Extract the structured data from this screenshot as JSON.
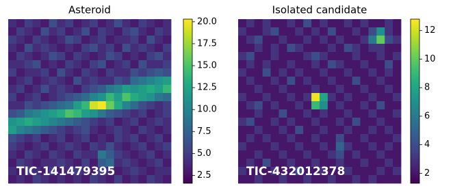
{
  "chart_data": [
    {
      "type": "heatmap",
      "title": "Asteroid",
      "annotation": "TIC-141479395",
      "colormap": "viridis",
      "clim": [
        1.6,
        20.3
      ],
      "cticks": [
        2.5,
        {
          "value": 5,
          "label": "5.0"
        },
        7.5,
        {
          "value": 10,
          "label": "10.0"
        },
        12.5,
        {
          "value": 15,
          "label": "15.0"
        },
        17.5,
        {
          "value": 20,
          "label": "20.0"
        }
      ],
      "values": [
        [
          4,
          3,
          5,
          4,
          3,
          6,
          4,
          5,
          3,
          4,
          5,
          3,
          4,
          6,
          4,
          3,
          5,
          4,
          3,
          4
        ],
        [
          3,
          5,
          4,
          3,
          6,
          4,
          5,
          3,
          4,
          6,
          3,
          5,
          4,
          3,
          5,
          6,
          4,
          3,
          5,
          4
        ],
        [
          5,
          4,
          3,
          5,
          4,
          3,
          4,
          6,
          5,
          3,
          4,
          5,
          3,
          4,
          4,
          5,
          3,
          6,
          4,
          3
        ],
        [
          4,
          3,
          6,
          4,
          5,
          4,
          3,
          4,
          3,
          5,
          6,
          4,
          5,
          3,
          6,
          4,
          5,
          4,
          3,
          5
        ],
        [
          3,
          5,
          4,
          3,
          4,
          6,
          5,
          3,
          5,
          4,
          3,
          4,
          6,
          5,
          3,
          4,
          3,
          5,
          6,
          4
        ],
        [
          4,
          4,
          5,
          6,
          3,
          4,
          3,
          5,
          4,
          3,
          5,
          6,
          3,
          4,
          5,
          3,
          6,
          4,
          4,
          5
        ],
        [
          5,
          3,
          4,
          4,
          5,
          3,
          6,
          4,
          3,
          5,
          4,
          3,
          5,
          4,
          4,
          6,
          5,
          6,
          7,
          6
        ],
        [
          3,
          4,
          5,
          3,
          4,
          5,
          4,
          3,
          6,
          4,
          5,
          4,
          4,
          6,
          5,
          8,
          9,
          10,
          11,
          12
        ],
        [
          4,
          5,
          3,
          4,
          6,
          4,
          5,
          4,
          3,
          5,
          6,
          7,
          9,
          10,
          12,
          11,
          12,
          13,
          12,
          14
        ],
        [
          5,
          3,
          4,
          5,
          3,
          4,
          5,
          6,
          7,
          8,
          10,
          11,
          14,
          12,
          15,
          13,
          12,
          11,
          9,
          8
        ],
        [
          4,
          4,
          6,
          5,
          6,
          7,
          8,
          9,
          12,
          14,
          19,
          20,
          16,
          13,
          10,
          8,
          6,
          5,
          4,
          5
        ],
        [
          6,
          7,
          9,
          10,
          11,
          12,
          13,
          15,
          14,
          12,
          11,
          9,
          7,
          6,
          5,
          4,
          5,
          3,
          4,
          5
        ],
        [
          11,
          12,
          13,
          12,
          11,
          10,
          9,
          8,
          7,
          6,
          5,
          4,
          5,
          3,
          4,
          5,
          3,
          4,
          5,
          4
        ],
        [
          12,
          10,
          9,
          8,
          7,
          6,
          5,
          4,
          5,
          6,
          4,
          3,
          4,
          5,
          4,
          3,
          5,
          4,
          3,
          4
        ],
        [
          6,
          5,
          4,
          5,
          3,
          4,
          5,
          3,
          4,
          5,
          3,
          4,
          3,
          5,
          4,
          5,
          3,
          4,
          5,
          3
        ],
        [
          5,
          4,
          3,
          4,
          5,
          3,
          4,
          5,
          4,
          3,
          5,
          4,
          6,
          4,
          3,
          4,
          5,
          3,
          4,
          5
        ],
        [
          4,
          3,
          5,
          4,
          3,
          5,
          4,
          3,
          5,
          4,
          4,
          9,
          7,
          5,
          4,
          3,
          4,
          5,
          3,
          4
        ],
        [
          3,
          5,
          4,
          3,
          4,
          4,
          5,
          4,
          3,
          5,
          3,
          7,
          8,
          4,
          5,
          4,
          3,
          4,
          5,
          3
        ],
        [
          4,
          3,
          5,
          4,
          3,
          5,
          3,
          4,
          5,
          4,
          3,
          5,
          4,
          3,
          4,
          5,
          4,
          3,
          4,
          4
        ],
        [
          3,
          4,
          3,
          5,
          4,
          3,
          4,
          3,
          4,
          3,
          5,
          4,
          3,
          5,
          3,
          4,
          3,
          5,
          4,
          3
        ]
      ]
    },
    {
      "type": "heatmap",
      "title": "Isolated candidate",
      "annotation": "TIC-432012378",
      "colormap": "viridis",
      "clim": [
        1.3,
        12.8
      ],
      "cticks": [
        2,
        4,
        6,
        8,
        10,
        12
      ],
      "values": [
        [
          2,
          3,
          2,
          3,
          2,
          2,
          3,
          2,
          4,
          2,
          3,
          2,
          2,
          3,
          2,
          3,
          2,
          2,
          3,
          2
        ],
        [
          3,
          2,
          2,
          3,
          4,
          2,
          2,
          3,
          2,
          3,
          2,
          4,
          2,
          2,
          3,
          2,
          4,
          7,
          3,
          2
        ],
        [
          2,
          3,
          4,
          2,
          2,
          3,
          2,
          2,
          3,
          2,
          3,
          2,
          3,
          2,
          2,
          3,
          6,
          10,
          4,
          3
        ],
        [
          2,
          2,
          3,
          2,
          3,
          2,
          4,
          3,
          2,
          2,
          2,
          3,
          2,
          4,
          3,
          2,
          3,
          3,
          2,
          2
        ],
        [
          3,
          4,
          2,
          2,
          3,
          2,
          2,
          2,
          3,
          4,
          3,
          2,
          2,
          2,
          3,
          2,
          2,
          3,
          2,
          3
        ],
        [
          2,
          3,
          2,
          3,
          2,
          2,
          3,
          2,
          2,
          3,
          2,
          4,
          3,
          2,
          2,
          3,
          2,
          2,
          4,
          2
        ],
        [
          3,
          2,
          2,
          4,
          2,
          3,
          2,
          3,
          2,
          2,
          3,
          2,
          2,
          3,
          2,
          2,
          3,
          2,
          3,
          2
        ],
        [
          2,
          3,
          2,
          2,
          3,
          2,
          4,
          2,
          3,
          2,
          2,
          3,
          2,
          2,
          4,
          2,
          2,
          3,
          2,
          2
        ],
        [
          2,
          2,
          3,
          2,
          2,
          3,
          2,
          2,
          2,
          3,
          2,
          2,
          3,
          2,
          2,
          3,
          2,
          2,
          3,
          2
        ],
        [
          3,
          2,
          2,
          3,
          2,
          2,
          3,
          2,
          3,
          12.5,
          8,
          3,
          2,
          3,
          2,
          2,
          3,
          2,
          2,
          3
        ],
        [
          2,
          3,
          4,
          2,
          3,
          2,
          2,
          3,
          2,
          9,
          7,
          2,
          3,
          2,
          2,
          3,
          2,
          4,
          2,
          2
        ],
        [
          2,
          2,
          3,
          2,
          2,
          4,
          2,
          2,
          3,
          2,
          3,
          2,
          2,
          3,
          2,
          2,
          3,
          2,
          2,
          3
        ],
        [
          3,
          4,
          2,
          2,
          3,
          2,
          3,
          2,
          2,
          3,
          2,
          2,
          3,
          2,
          4,
          2,
          2,
          3,
          2,
          2
        ],
        [
          2,
          2,
          3,
          2,
          2,
          3,
          2,
          4,
          2,
          2,
          3,
          2,
          2,
          3,
          2,
          2,
          3,
          2,
          3,
          2
        ],
        [
          2,
          3,
          2,
          3,
          2,
          2,
          3,
          2,
          2,
          3,
          2,
          2,
          4,
          2,
          2,
          3,
          2,
          2,
          2,
          3
        ],
        [
          3,
          2,
          2,
          2,
          3,
          2,
          2,
          3,
          2,
          2,
          3,
          2,
          5,
          3,
          2,
          2,
          3,
          2,
          3,
          2
        ],
        [
          2,
          2,
          3,
          2,
          2,
          3,
          2,
          2,
          3,
          2,
          2,
          3,
          4,
          2,
          3,
          2,
          2,
          3,
          2,
          2
        ],
        [
          2,
          3,
          2,
          4,
          2,
          2,
          3,
          2,
          2,
          3,
          2,
          2,
          3,
          2,
          2,
          3,
          2,
          2,
          3,
          2
        ],
        [
          3,
          2,
          2,
          2,
          3,
          2,
          2,
          4,
          2,
          2,
          3,
          2,
          2,
          3,
          2,
          2,
          2,
          3,
          2,
          3
        ],
        [
          2,
          2,
          3,
          2,
          2,
          3,
          2,
          2,
          3,
          2,
          2,
          3,
          2,
          2,
          3,
          2,
          3,
          2,
          2,
          2
        ]
      ]
    }
  ]
}
